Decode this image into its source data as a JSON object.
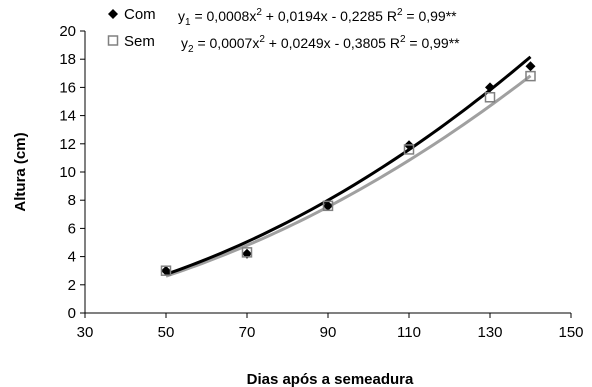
{
  "chart_data": {
    "type": "scatter",
    "xlabel": "Dias após a semeadura",
    "ylabel": "Altura (cm)",
    "xlim": [
      30,
      150
    ],
    "ylim": [
      0,
      20
    ],
    "xticks": [
      "30",
      "50",
      "70",
      "90",
      "110",
      "130",
      "150"
    ],
    "yticks": [
      "0",
      "2",
      "4",
      "6",
      "8",
      "10",
      "12",
      "14",
      "16",
      "18",
      "20"
    ],
    "grid": false,
    "legend_position": "top-left",
    "series": [
      {
        "name": "Com",
        "marker": "diamond-filled",
        "color": "#000000",
        "trend_color": "#000000",
        "x": [
          50,
          70,
          90,
          110,
          130,
          140
        ],
        "y": [
          3.0,
          4.2,
          7.6,
          11.9,
          16.0,
          17.5
        ],
        "trend": {
          "a": 0.0008,
          "b": 0.0194,
          "c": -0.2285
        },
        "equation": {
          "y_base": "y",
          "y_sub": "1",
          "eq_a": " = 0,0008x",
          "sup_a": "2",
          "eq_b": " + 0,0194x - 0,2285  R",
          "sup_b": "2",
          "eq_c": " = 0,99**"
        }
      },
      {
        "name": "Sem",
        "marker": "square-open",
        "color": "#808080",
        "trend_color": "#a0a0a0",
        "x": [
          50,
          70,
          90,
          110,
          130,
          140
        ],
        "y": [
          3.0,
          4.3,
          7.6,
          11.6,
          15.3,
          16.8
        ],
        "trend": {
          "a": 0.0007,
          "b": 0.0249,
          "c": -0.3805
        },
        "equation": {
          "y_base": "y",
          "y_sub": "2",
          "eq_a": " = 0,0007x",
          "sup_a": "2",
          "eq_b": " + 0,0249x - 0,3805  R",
          "sup_b": "2",
          "eq_c": " = 0,99**"
        }
      }
    ]
  }
}
